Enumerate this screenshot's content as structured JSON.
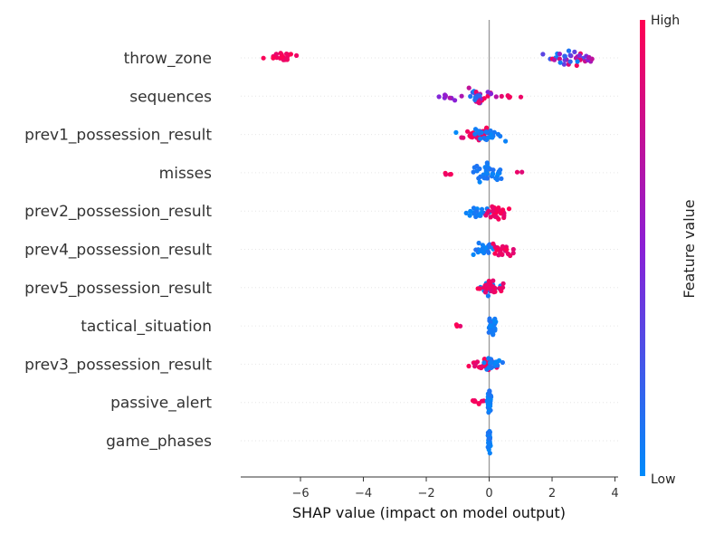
{
  "chart_data": {
    "type": "scatter",
    "subtype": "shap-beeswarm",
    "xlabel": "SHAP value (impact on model output)",
    "xlim": [
      -7.9,
      4.1
    ],
    "xticks": [
      -6,
      -4,
      -2,
      0,
      2,
      4
    ],
    "xtick_labels": [
      "−6",
      "−4",
      "−2",
      "0",
      "2",
      "4"
    ],
    "grid": "dotted horizontal row guides",
    "colorbar": {
      "title": "Feature value",
      "high_label": "High",
      "low_label": "Low",
      "high_color": "#ff0052",
      "mid_color": "#8b1fd6",
      "low_color": "#008bfb",
      "placement": "right"
    },
    "features": [
      {
        "name": "throw_zone",
        "clusters": [
          {
            "center": -6.7,
            "spread": 0.55,
            "count": 24,
            "jitter": 0.18,
            "color": "high"
          },
          {
            "center": 2.6,
            "spread": 0.8,
            "count": 36,
            "jitter": 0.26,
            "color": "mix"
          }
        ]
      },
      {
        "name": "sequences",
        "clusters": [
          {
            "center": -1.4,
            "spread": 0.2,
            "count": 6,
            "jitter": 0.12,
            "color": "mid"
          },
          {
            "center": -0.3,
            "spread": 0.5,
            "count": 30,
            "jitter": 0.3,
            "color": "mix"
          },
          {
            "center": 0.7,
            "spread": 0.25,
            "count": 6,
            "jitter": 0.1,
            "color": "high"
          }
        ]
      },
      {
        "name": "prev1_possession_result",
        "clusters": [
          {
            "center": -0.4,
            "spread": 0.6,
            "count": 26,
            "jitter": 0.22,
            "color": "high"
          },
          {
            "center": 0.1,
            "spread": 0.8,
            "count": 24,
            "jitter": 0.25,
            "color": "low"
          }
        ]
      },
      {
        "name": "misses",
        "clusters": [
          {
            "center": -1.3,
            "spread": 0.2,
            "count": 4,
            "jitter": 0.1,
            "color": "high"
          },
          {
            "center": 0.0,
            "spread": 0.5,
            "count": 40,
            "jitter": 0.35,
            "color": "low"
          },
          {
            "center": 1.0,
            "spread": 0.15,
            "count": 2,
            "jitter": 0.08,
            "color": "high"
          }
        ]
      },
      {
        "name": "prev2_possession_result",
        "clusters": [
          {
            "center": -0.3,
            "spread": 0.4,
            "count": 20,
            "jitter": 0.2,
            "color": "low"
          },
          {
            "center": 0.3,
            "spread": 0.4,
            "count": 28,
            "jitter": 0.25,
            "color": "high"
          }
        ]
      },
      {
        "name": "prev4_possession_result",
        "clusters": [
          {
            "center": -0.2,
            "spread": 0.35,
            "count": 22,
            "jitter": 0.22,
            "color": "low"
          },
          {
            "center": 0.35,
            "spread": 0.4,
            "count": 22,
            "jitter": 0.22,
            "color": "high"
          }
        ]
      },
      {
        "name": "prev5_possession_result",
        "clusters": [
          {
            "center": -0.1,
            "spread": 0.4,
            "count": 24,
            "jitter": 0.25,
            "color": "low"
          },
          {
            "center": 0.1,
            "spread": 0.5,
            "count": 22,
            "jitter": 0.25,
            "color": "high"
          }
        ]
      },
      {
        "name": "tactical_situation",
        "clusters": [
          {
            "center": -1.0,
            "spread": 0.1,
            "count": 3,
            "jitter": 0.06,
            "color": "high"
          },
          {
            "center": 0.1,
            "spread": 0.12,
            "count": 40,
            "jitter": 0.3,
            "color": "low"
          }
        ]
      },
      {
        "name": "prev3_possession_result",
        "clusters": [
          {
            "center": -0.2,
            "spread": 0.45,
            "count": 30,
            "jitter": 0.22,
            "color": "high"
          },
          {
            "center": 0.2,
            "spread": 0.35,
            "count": 20,
            "jitter": 0.22,
            "color": "low"
          }
        ]
      },
      {
        "name": "passive_alert",
        "clusters": [
          {
            "center": -0.35,
            "spread": 0.2,
            "count": 8,
            "jitter": 0.08,
            "color": "high"
          },
          {
            "center": 0.0,
            "spread": 0.06,
            "count": 40,
            "jitter": 0.35,
            "color": "low"
          }
        ]
      },
      {
        "name": "game_phases",
        "clusters": [
          {
            "center": 0.0,
            "spread": 0.04,
            "count": 48,
            "jitter": 0.4,
            "color": "low"
          }
        ]
      }
    ]
  }
}
